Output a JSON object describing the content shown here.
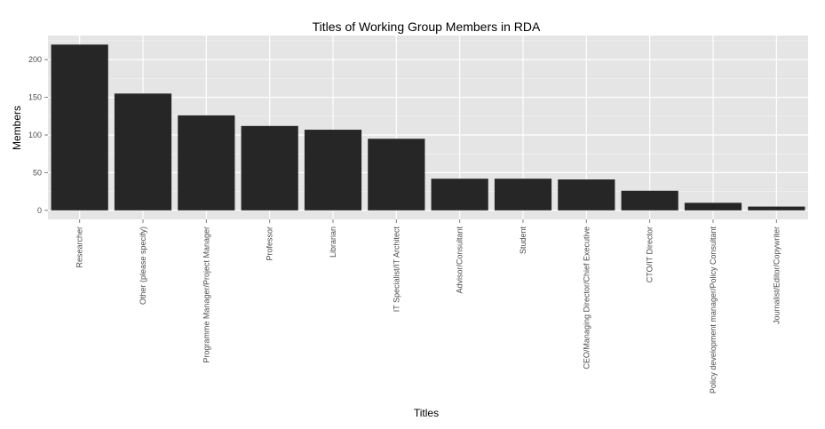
{
  "chart_data": {
    "type": "bar",
    "title": "Titles of Working Group Members in RDA",
    "xlabel": "Titles",
    "ylabel": "Members",
    "categories": [
      "Researcher",
      "Other (please specify)",
      "Programme Manager/Project Manager",
      "Professor",
      "Librarian",
      "IT Specialist/IT Architect",
      "Advisor/Consultant",
      "Student",
      "CEO/Managing Director/Chief Executive",
      "CTO/IT Director",
      "Policy development manager/Policy Consultant",
      "Journalist/Editor/Copywriter"
    ],
    "values": [
      220,
      155,
      126,
      112,
      107,
      95,
      42,
      42,
      41,
      26,
      10,
      5
    ],
    "yticks": [
      0,
      50,
      100,
      150,
      200
    ],
    "ylim": [
      -12,
      232
    ],
    "grid": true,
    "legend": "none",
    "colors": {
      "bar": "#262626",
      "panel": "#e5e5e5",
      "grid_major": "#ffffff",
      "grid_minor": "#f0f0f0"
    }
  }
}
